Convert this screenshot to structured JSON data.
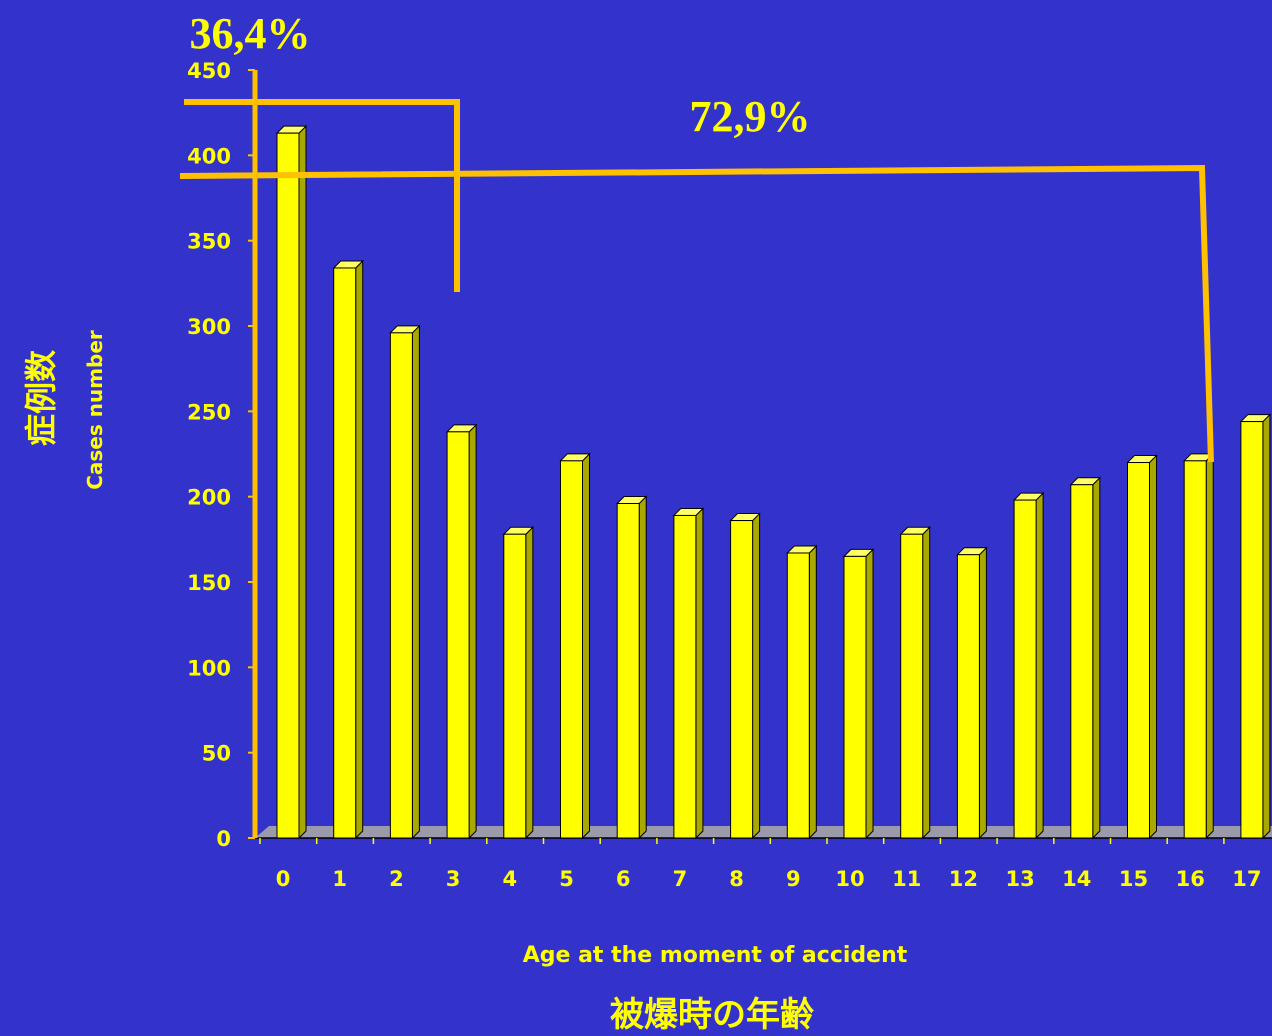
{
  "colors": {
    "background": "#3333cc",
    "bar_front": "#ffff00",
    "bar_side": "#a8a800",
    "bar_top": "#ffff66",
    "bracket": "#ffc000",
    "text": "#ffff00",
    "floor": "#9a9aaa"
  },
  "annotations": {
    "pct_0_3": "36,4%",
    "pct_0_16": "72,9%"
  },
  "chart_data": {
    "type": "bar",
    "categories": [
      "0",
      "1",
      "2",
      "3",
      "4",
      "5",
      "6",
      "7",
      "8",
      "9",
      "10",
      "11",
      "12",
      "13",
      "14",
      "15",
      "16",
      "17"
    ],
    "values": [
      413,
      334,
      296,
      238,
      178,
      221,
      196,
      189,
      186,
      167,
      165,
      178,
      166,
      198,
      207,
      220,
      221,
      244
    ],
    "ylim": [
      0,
      450
    ],
    "yticks": [
      0,
      50,
      100,
      150,
      200,
      250,
      300,
      350,
      400,
      450
    ],
    "ylabel_jp": "症例数",
    "ylabel": "Cases number",
    "xlabel": "Age at the moment of accident",
    "xlabel_jp": "被爆時の年齢",
    "grid": false,
    "legend": "none"
  }
}
